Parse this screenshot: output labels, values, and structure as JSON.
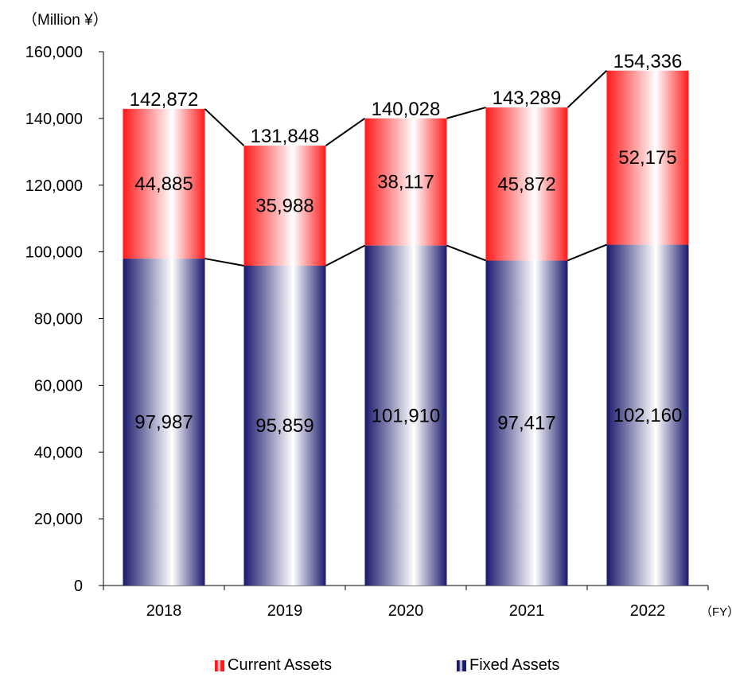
{
  "chart_data": {
    "type": "bar",
    "stacked": true,
    "unit_label": "（Million ¥）",
    "x_unit_label": "（FY）",
    "categories": [
      "2018",
      "2019",
      "2020",
      "2021",
      "2022"
    ],
    "series": [
      {
        "name": "Fixed Assets",
        "values": [
          97987,
          95859,
          101910,
          97417,
          102160
        ],
        "color": "#1a1a6e"
      },
      {
        "name": "Current Assets",
        "values": [
          44885,
          35988,
          38117,
          45872,
          52175
        ],
        "color": "#ff1a1a"
      }
    ],
    "totals": [
      142872,
      131848,
      140028,
      143289,
      154336
    ],
    "ylim": [
      0,
      160000
    ],
    "yticks": [
      "0",
      "20,000",
      "40,000",
      "60,000",
      "80,000",
      "100,000",
      "120,000",
      "140,000",
      "160,000"
    ],
    "grid": false,
    "legend_position": "bottom"
  }
}
